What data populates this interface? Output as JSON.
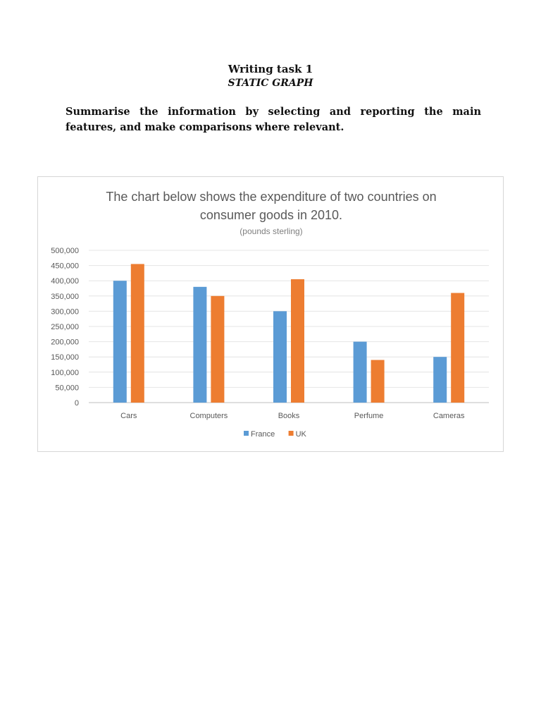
{
  "document": {
    "heading": "Writing task 1",
    "subheading": "STATIC GRAPH",
    "instructions": "Summarise the information by selecting and reporting the main features, and make comparisons where relevant."
  },
  "chart_data": {
    "type": "bar",
    "title_line1": "The chart below shows the expenditure of two countries on",
    "title_line2": "consumer goods in 2010.",
    "subtitle": "(pounds sterling)",
    "categories": [
      "Cars",
      "Computers",
      "Books",
      "Perfume",
      "Cameras"
    ],
    "series": [
      {
        "name": "France",
        "color": "#5b9bd5",
        "values": [
          400000,
          380000,
          300000,
          200000,
          150000
        ]
      },
      {
        "name": "UK",
        "color": "#ed7d31",
        "values": [
          455000,
          350000,
          405000,
          140000,
          360000
        ]
      }
    ],
    "yticks": [
      "0",
      "50,000",
      "100,000",
      "150,000",
      "200,000",
      "250,000",
      "300,000",
      "350,000",
      "400,000",
      "450,000",
      "500,000"
    ],
    "ylim": [
      0,
      500000
    ],
    "grid": true,
    "legend_position": "bottom"
  }
}
